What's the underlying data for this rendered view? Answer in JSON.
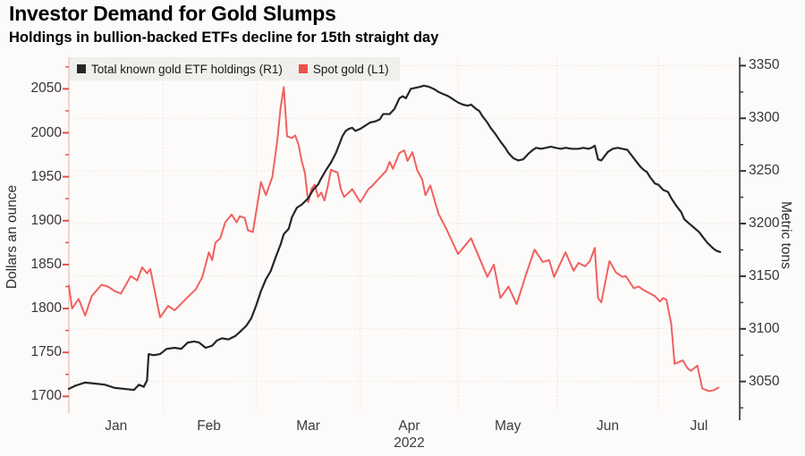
{
  "header": {
    "title": "Investor Demand for Gold Slumps",
    "subtitle": "Holdings in bullion-backed ETFs decline for 15th straight day"
  },
  "legend": {
    "items": [
      {
        "label": "Total known gold ETF holdings (R1)",
        "color": "#262626"
      },
      {
        "label": "Spot gold (L1)",
        "color": "#f0504e"
      }
    ]
  },
  "chart_data": {
    "type": "line",
    "title": "Investor Demand for Gold Slumps",
    "subtitle": "Holdings in bullion-backed ETFs decline for 15th straight day",
    "x_axis": {
      "unit": "days since Jan 1, 2022",
      "range": [
        0,
        206
      ],
      "month_boundaries": [
        29,
        57.5,
        89.5,
        119.5,
        150,
        181
      ],
      "month_labels": [
        {
          "label": "Jan",
          "day": 14.5
        },
        {
          "label": "Feb",
          "day": 43
        },
        {
          "label": "Mar",
          "day": 73.5
        },
        {
          "label": "Apr",
          "day": 104.5
        },
        {
          "label": "May",
          "day": 134.8
        },
        {
          "label": "Jun",
          "day": 165.5
        },
        {
          "label": "Jul",
          "day": 193.5
        }
      ],
      "year_label": "2022",
      "year_label_day": 104.5
    },
    "left_axis": {
      "label": "Dollars an ounce",
      "range": [
        1681,
        2086
      ],
      "ticks": [
        1700,
        1750,
        1800,
        1850,
        1900,
        1950,
        2000,
        2050
      ],
      "minor_ticks": [
        1725,
        1775,
        1825,
        1875,
        1925,
        1975,
        2025,
        2075
      ],
      "color": "#e0504c",
      "axis_line_color": "#eab9b4"
    },
    "right_axis": {
      "label": "Metric tons",
      "range": [
        3020,
        3358
      ],
      "ticks": [
        3050,
        3100,
        3150,
        3200,
        3250,
        3300,
        3350
      ],
      "minor_ticks": [
        3025,
        3075,
        3125,
        3175,
        3225,
        3275,
        3325
      ],
      "color": "#333333",
      "axis_line_color": "#333333"
    },
    "grid": {
      "style": "dotted",
      "horizontal_color": "#e9e2dd",
      "vertical_color": "#efdcd8"
    },
    "series": [
      {
        "name": "Total known gold ETF holdings (R1)",
        "axis": "right",
        "color": "#262626",
        "points": [
          [
            0,
            3043
          ],
          [
            2,
            3046
          ],
          [
            5,
            3049
          ],
          [
            8,
            3048
          ],
          [
            11,
            3047
          ],
          [
            14,
            3044
          ],
          [
            17,
            3043
          ],
          [
            20,
            3042
          ],
          [
            21.5,
            3047
          ],
          [
            23,
            3045
          ],
          [
            24,
            3051
          ],
          [
            24.5,
            3076
          ],
          [
            26,
            3075
          ],
          [
            28,
            3076
          ],
          [
            30,
            3081
          ],
          [
            32.5,
            3082
          ],
          [
            34.5,
            3081
          ],
          [
            36.5,
            3087
          ],
          [
            38.5,
            3088
          ],
          [
            40,
            3087
          ],
          [
            42,
            3082
          ],
          [
            44,
            3084
          ],
          [
            45.5,
            3089
          ],
          [
            47,
            3091
          ],
          [
            49,
            3090
          ],
          [
            51,
            3093
          ],
          [
            52.5,
            3097
          ],
          [
            54.5,
            3103
          ],
          [
            56,
            3110
          ],
          [
            57.5,
            3122
          ],
          [
            59,
            3136
          ],
          [
            60.5,
            3147
          ],
          [
            62,
            3155
          ],
          [
            63.5,
            3168
          ],
          [
            65,
            3180
          ],
          [
            66,
            3190
          ],
          [
            67.5,
            3195
          ],
          [
            68.5,
            3206
          ],
          [
            70,
            3215
          ],
          [
            71.5,
            3218
          ],
          [
            73.5,
            3224
          ],
          [
            75,
            3232
          ],
          [
            76.5,
            3237
          ],
          [
            77.5,
            3243
          ],
          [
            79,
            3251
          ],
          [
            80.5,
            3258
          ],
          [
            82,
            3267
          ],
          [
            83,
            3275
          ],
          [
            84,
            3283
          ],
          [
            85,
            3288
          ],
          [
            86,
            3290
          ],
          [
            87,
            3291
          ],
          [
            88,
            3288
          ],
          [
            89.5,
            3290
          ],
          [
            91,
            3293
          ],
          [
            92.5,
            3296
          ],
          [
            94,
            3297
          ],
          [
            95.5,
            3299
          ],
          [
            96.5,
            3304
          ],
          [
            98.5,
            3304
          ],
          [
            100,
            3309
          ],
          [
            101.5,
            3319
          ],
          [
            102.5,
            3321
          ],
          [
            103.5,
            3319
          ],
          [
            105,
            3328
          ],
          [
            106.5,
            3329
          ],
          [
            108,
            3330
          ],
          [
            109,
            3331
          ],
          [
            110.5,
            3330
          ],
          [
            112,
            3328
          ],
          [
            113.5,
            3325
          ],
          [
            115,
            3323
          ],
          [
            116.5,
            3321
          ],
          [
            118,
            3318
          ],
          [
            119.5,
            3315
          ],
          [
            121,
            3313
          ],
          [
            122.5,
            3312
          ],
          [
            123.5,
            3313
          ],
          [
            125,
            3309
          ],
          [
            126,
            3307
          ],
          [
            127,
            3302
          ],
          [
            128.5,
            3296
          ],
          [
            129.5,
            3291
          ],
          [
            131,
            3285
          ],
          [
            132.5,
            3278
          ],
          [
            134,
            3272
          ],
          [
            135,
            3267
          ],
          [
            136.5,
            3262
          ],
          [
            138,
            3260
          ],
          [
            139.5,
            3261
          ],
          [
            141,
            3266
          ],
          [
            142.5,
            3270
          ],
          [
            143.5,
            3272
          ],
          [
            145,
            3271
          ],
          [
            146.5,
            3272
          ],
          [
            148,
            3273
          ],
          [
            149.5,
            3272
          ],
          [
            151,
            3271
          ],
          [
            152.5,
            3272
          ],
          [
            154.5,
            3271
          ],
          [
            156.5,
            3271
          ],
          [
            158,
            3272
          ],
          [
            159.5,
            3271
          ],
          [
            160.5,
            3272
          ],
          [
            161.5,
            3274
          ],
          [
            162.5,
            3261
          ],
          [
            163.5,
            3260
          ],
          [
            165.5,
            3268
          ],
          [
            167,
            3271
          ],
          [
            168.5,
            3272
          ],
          [
            170,
            3271
          ],
          [
            171.5,
            3270
          ],
          [
            173,
            3264
          ],
          [
            174,
            3260
          ],
          [
            175.5,
            3254
          ],
          [
            176.5,
            3251
          ],
          [
            177.5,
            3249
          ],
          [
            178.5,
            3244
          ],
          [
            180,
            3238
          ],
          [
            181,
            3237
          ],
          [
            182.5,
            3232
          ],
          [
            184,
            3230
          ],
          [
            185,
            3224
          ],
          [
            186.5,
            3217
          ],
          [
            188,
            3211
          ],
          [
            189,
            3204
          ],
          [
            190.5,
            3200
          ],
          [
            192,
            3196
          ],
          [
            193.5,
            3192
          ],
          [
            195,
            3186
          ],
          [
            196,
            3182
          ],
          [
            198,
            3176
          ],
          [
            199,
            3174
          ],
          [
            200,
            3173
          ]
        ]
      },
      {
        "name": "Spot gold (L1)",
        "axis": "left",
        "color": "#f0504e",
        "points": [
          [
            0,
            1826
          ],
          [
            1,
            1800
          ],
          [
            3,
            1811
          ],
          [
            5,
            1792
          ],
          [
            7,
            1814
          ],
          [
            10,
            1827
          ],
          [
            12,
            1825
          ],
          [
            14,
            1820
          ],
          [
            16,
            1817
          ],
          [
            19,
            1837
          ],
          [
            21,
            1832
          ],
          [
            22.5,
            1847
          ],
          [
            24,
            1840
          ],
          [
            25,
            1845
          ],
          [
            28,
            1790
          ],
          [
            30.5,
            1803
          ],
          [
            32.5,
            1798
          ],
          [
            36.5,
            1813
          ],
          [
            39,
            1822
          ],
          [
            41,
            1836
          ],
          [
            42,
            1850
          ],
          [
            43,
            1864
          ],
          [
            44,
            1855
          ],
          [
            45,
            1875
          ],
          [
            46.5,
            1880
          ],
          [
            48,
            1898
          ],
          [
            50,
            1907
          ],
          [
            51.5,
            1898
          ],
          [
            52.5,
            1905
          ],
          [
            54,
            1903
          ],
          [
            55,
            1889
          ],
          [
            56.5,
            1887
          ],
          [
            59,
            1944
          ],
          [
            60.5,
            1929
          ],
          [
            62.5,
            1950
          ],
          [
            64,
            1991
          ],
          [
            65,
            2028
          ],
          [
            66,
            2052
          ],
          [
            67,
            1996
          ],
          [
            68.5,
            1994
          ],
          [
            69.5,
            1997
          ],
          [
            70.5,
            1987
          ],
          [
            71.5,
            1968
          ],
          [
            72.5,
            1954
          ],
          [
            73.5,
            1921
          ],
          [
            74.5,
            1936
          ],
          [
            75.5,
            1941
          ],
          [
            76.5,
            1927
          ],
          [
            77.5,
            1932
          ],
          [
            78.5,
            1923
          ],
          [
            79.5,
            1939
          ],
          [
            80.5,
            1958
          ],
          [
            81.5,
            1956
          ],
          [
            82.5,
            1955
          ],
          [
            83.5,
            1936
          ],
          [
            84.5,
            1927
          ],
          [
            86,
            1932
          ],
          [
            87,
            1936
          ],
          [
            88,
            1930
          ],
          [
            89.5,
            1921
          ],
          [
            90.5,
            1927
          ],
          [
            92,
            1936
          ],
          [
            93,
            1939
          ],
          [
            95,
            1947
          ],
          [
            97.5,
            1957
          ],
          [
            98.5,
            1967
          ],
          [
            99.5,
            1959
          ],
          [
            101.5,
            1977
          ],
          [
            103,
            1980
          ],
          [
            104,
            1968
          ],
          [
            105.5,
            1978
          ],
          [
            107,
            1957
          ],
          [
            108.5,
            1947
          ],
          [
            109.5,
            1929
          ],
          [
            111,
            1940
          ],
          [
            113.5,
            1908
          ],
          [
            116,
            1890
          ],
          [
            119.5,
            1862
          ],
          [
            123.5,
            1880
          ],
          [
            128.5,
            1836
          ],
          [
            130.5,
            1850
          ],
          [
            132.5,
            1812
          ],
          [
            135,
            1825
          ],
          [
            137.5,
            1805
          ],
          [
            140.5,
            1840
          ],
          [
            143,
            1867
          ],
          [
            145.5,
            1853
          ],
          [
            147.5,
            1855
          ],
          [
            149,
            1836
          ],
          [
            152.5,
            1864
          ],
          [
            155,
            1843
          ],
          [
            156.5,
            1852
          ],
          [
            158.5,
            1848
          ],
          [
            160,
            1854
          ],
          [
            161.5,
            1869
          ],
          [
            162.5,
            1812
          ],
          [
            163.5,
            1807
          ],
          [
            166,
            1854
          ],
          [
            168,
            1841
          ],
          [
            170,
            1836
          ],
          [
            171,
            1837
          ],
          [
            173.5,
            1823
          ],
          [
            175,
            1825
          ],
          [
            176.5,
            1821
          ],
          [
            178.5,
            1817
          ],
          [
            180,
            1814
          ],
          [
            181.5,
            1808
          ],
          [
            182.5,
            1812
          ],
          [
            183.5,
            1810
          ],
          [
            185,
            1782
          ],
          [
            186,
            1737
          ],
          [
            188.5,
            1741
          ],
          [
            190,
            1732
          ],
          [
            191,
            1729
          ],
          [
            193,
            1735
          ],
          [
            194.5,
            1709
          ],
          [
            196.5,
            1706
          ],
          [
            198,
            1707
          ],
          [
            199.5,
            1710
          ]
        ]
      }
    ]
  }
}
